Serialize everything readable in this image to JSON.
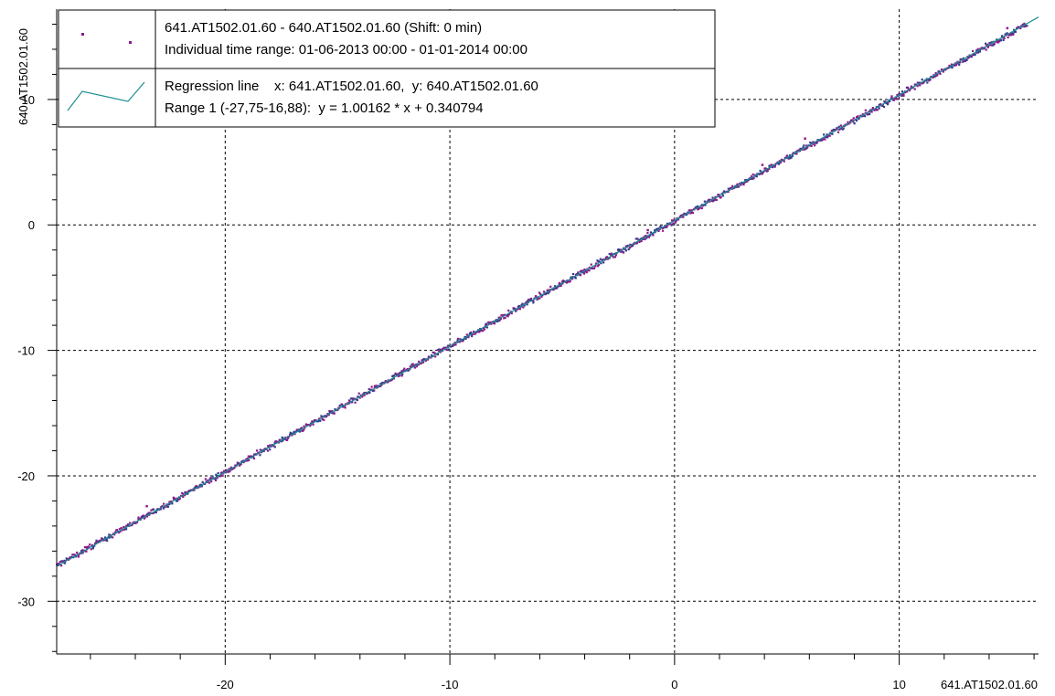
{
  "chart_data": {
    "type": "scatter",
    "title": "",
    "xlabel": "641.AT1502.01.60",
    "ylabel": "640.AT1502.01.60",
    "xlim": [
      -27.5,
      16.2
    ],
    "ylim": [
      -34.2,
      17.2
    ],
    "x_ticks": [
      -20,
      -10,
      0,
      10
    ],
    "y_ticks": [
      -30,
      -20,
      -10,
      0,
      10
    ],
    "x_tick_labels": [
      "-20",
      "-10",
      "0",
      "10"
    ],
    "y_tick_labels": [
      "-30",
      "-20",
      "-10",
      "0",
      "10"
    ],
    "grid": true,
    "legend_position": "top-left",
    "series": [
      {
        "name": "641.AT1502.01.60 - 640.AT1502.01.60 (Shift: 0 min)",
        "subtitle": "Individual time range: 01-06-2013  00:00 - 01-01-2014  00:00",
        "kind": "points",
        "color": "#8b1a8b",
        "x_range": [
          -27.5,
          15.7
        ],
        "approx_relation": "y = x + 0.34 (points tightly clustered along the regression line)"
      },
      {
        "name": "Regression line    x: 641.AT1502.01.60,  y: 640.AT1502.01.60",
        "subtitle": "Range 1 (-27,75-16,88):  y = 1.00162 * x + 0.340794",
        "kind": "line",
        "color": "#1e8f8f",
        "slope": 1.00162,
        "intercept": 0.340794,
        "x_range": [
          -27.75,
          16.88
        ]
      }
    ],
    "colors": {
      "background": "#ffffff",
      "axis": "#000000",
      "grid": "#000000",
      "points": "#8b1a8b",
      "points_secondary": "#2b3f8f",
      "regression": "#1e8f8f"
    }
  }
}
